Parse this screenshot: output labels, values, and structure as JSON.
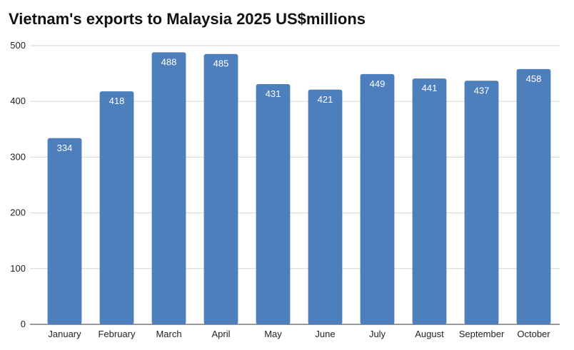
{
  "chart_data": {
    "type": "bar",
    "title": "Vietnam's exports to Malaysia 2025 US$millions",
    "categories": [
      "January",
      "February",
      "March",
      "April",
      "May",
      "June",
      "July",
      "August",
      "September",
      "October"
    ],
    "values": [
      334,
      418,
      488,
      485,
      431,
      421,
      449,
      441,
      437,
      458
    ],
    "xlabel": "",
    "ylabel": "",
    "ylim": [
      0,
      500
    ],
    "yticks": [
      0,
      100,
      200,
      300,
      400,
      500
    ],
    "grid": true,
    "legend": "none",
    "bar_color": "#4e7fbd"
  }
}
